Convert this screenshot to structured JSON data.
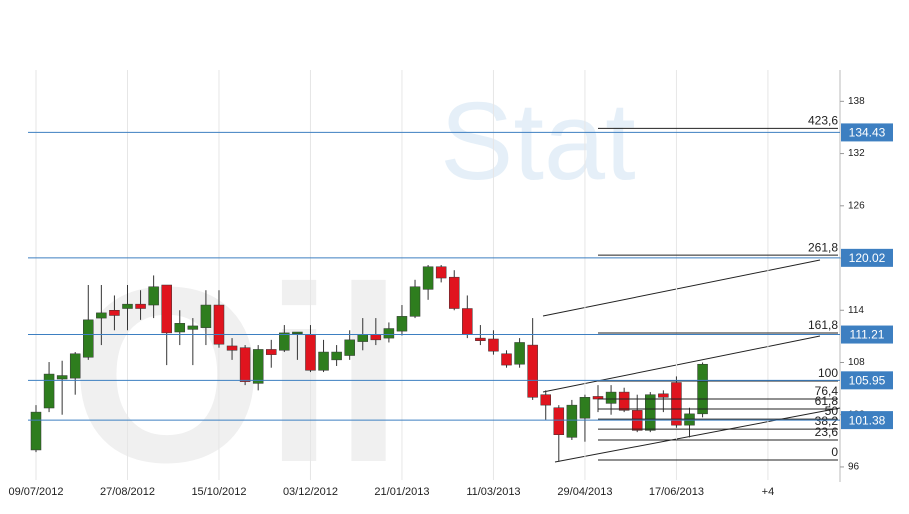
{
  "chart_data": {
    "type": "candlestick",
    "watermark": [
      "Oil",
      "Stat"
    ],
    "categories": [
      "09/07/2012",
      null,
      null,
      null,
      null,
      null,
      null,
      "27/08/2012",
      null,
      null,
      null,
      null,
      null,
      null,
      "15/10/2012",
      null,
      null,
      null,
      null,
      null,
      null,
      "03/12/2012",
      null,
      null,
      null,
      null,
      null,
      null,
      "21/01/2013",
      null,
      null,
      null,
      null,
      null,
      null,
      "11/03/2013",
      null,
      null,
      null,
      null,
      null,
      null,
      "29/04/2013",
      null,
      null,
      null,
      null,
      null,
      null,
      "17/06/2013",
      null,
      null,
      null,
      null,
      null,
      null,
      "+4"
    ],
    "open": [
      97.95,
      102.77,
      106.1,
      106.2,
      108.6,
      113.1,
      114.0,
      114.2,
      114.7,
      114.6,
      116.9,
      111.5,
      111.8,
      112.0,
      114.6,
      109.9,
      109.7,
      105.6,
      109.5,
      109.4,
      111.3,
      111.2,
      107.1,
      108.3,
      108.8,
      110.4,
      111.2,
      110.8,
      111.6,
      113.3,
      116.4,
      119.0,
      117.8,
      114.2,
      110.8,
      110.7,
      109.0,
      107.8,
      110.0,
      104.3,
      102.8,
      99.4,
      101.6,
      104.1,
      103.3,
      104.6,
      102.5,
      100.2,
      104.4,
      105.7,
      100.8,
      102.1,
      null,
      null,
      null,
      null,
      null
    ],
    "high": [
      103.1,
      108.05,
      108.2,
      109.2,
      116.9,
      116.9,
      115.7,
      116.9,
      116.3,
      118.0,
      116.9,
      114.0,
      113.1,
      116.3,
      116.3,
      110.8,
      110.0,
      110.0,
      110.6,
      112.3,
      111.5,
      112.3,
      110.6,
      110.0,
      111.7,
      113.1,
      113.1,
      112.6,
      114.6,
      117.5,
      119.2,
      119.2,
      118.6,
      115.7,
      112.3,
      111.7,
      109.4,
      110.8,
      113.1,
      104.8,
      103.1,
      103.7,
      104.3,
      105.4,
      105.4,
      105.1,
      104.3,
      104.6,
      104.8,
      106.4,
      102.8,
      108.0,
      null,
      null,
      null,
      null,
      null
    ],
    "low": [
      97.7,
      102.3,
      102.0,
      104.3,
      108.3,
      110.0,
      111.7,
      111.7,
      112.9,
      113.1,
      107.7,
      110.0,
      107.7,
      110.0,
      109.7,
      108.3,
      105.4,
      104.8,
      107.4,
      109.2,
      108.3,
      106.9,
      106.9,
      107.6,
      108.3,
      109.4,
      110.0,
      110.3,
      111.1,
      113.1,
      115.2,
      117.2,
      114.0,
      110.8,
      110.0,
      108.9,
      107.4,
      107.4,
      103.7,
      101.4,
      96.6,
      99.1,
      98.9,
      102.3,
      102.0,
      102.3,
      100.0,
      100.0,
      102.3,
      100.5,
      99.4,
      101.7,
      null,
      null,
      null,
      null,
      null
    ],
    "close": [
      102.3,
      106.67,
      106.5,
      109.0,
      112.9,
      113.7,
      113.4,
      114.7,
      114.2,
      116.7,
      111.4,
      112.5,
      112.2,
      114.6,
      110.1,
      109.4,
      105.8,
      109.5,
      108.9,
      111.4,
      111.5,
      107.1,
      109.2,
      109.2,
      110.6,
      111.2,
      110.6,
      111.9,
      113.3,
      116.7,
      119.0,
      117.7,
      114.2,
      111.2,
      110.5,
      109.3,
      107.7,
      110.3,
      104.0,
      103.1,
      99.7,
      103.1,
      104.0,
      103.8,
      104.6,
      102.5,
      100.2,
      104.3,
      104.0,
      100.8,
      102.1,
      107.8,
      null,
      null,
      null,
      null,
      null
    ],
    "up_color": "#2e7d1e",
    "down_color": "#e0141e",
    "ylim": [
      94.5,
      141.6
    ],
    "yticks": [
      96,
      102,
      108,
      114,
      120,
      126,
      132,
      138
    ],
    "levels": {
      "values": [
        134.43,
        120.02,
        111.21,
        105.95,
        101.38
      ],
      "color": "#3d7fc1"
    },
    "fibonacci": {
      "labels": [
        "423,6",
        "261,8",
        "161,8",
        "100",
        "76,4",
        "61,8",
        "50",
        "38,2",
        "23,6",
        "0"
      ],
      "values": [
        134.9,
        120.33,
        111.38,
        105.87,
        103.8,
        102.65,
        101.5,
        100.35,
        99.1,
        96.8
      ]
    }
  }
}
